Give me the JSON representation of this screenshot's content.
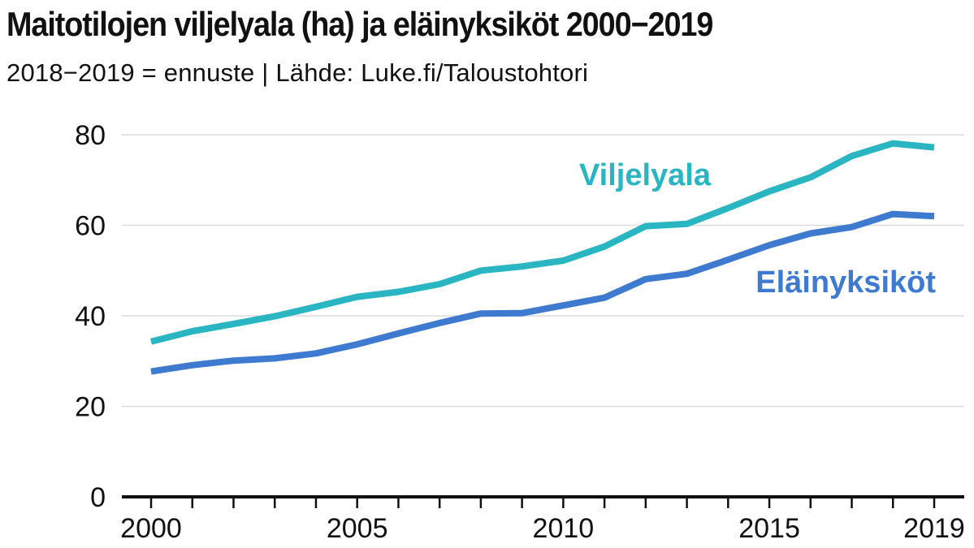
{
  "header": {
    "title": "Maitotilojen viljelyala (ha) ja eläinyksiköt 2000−2019",
    "subtitle": "2018−2019 = ennuste | Lähde: Luke.fi/Taloustohtori"
  },
  "chart_data": {
    "type": "line",
    "title": "Maitotilojen viljelyala (ha) ja eläinyksiköt 2000−2019",
    "subtitle": "2018−2019 = ennuste | Lähde: Luke.fi/Taloustohtori",
    "xlabel": "",
    "ylabel": "",
    "x": [
      2000,
      2001,
      2002,
      2003,
      2004,
      2005,
      2006,
      2007,
      2008,
      2009,
      2010,
      2011,
      2012,
      2013,
      2014,
      2015,
      2016,
      2017,
      2018,
      2019
    ],
    "x_tick_labels": [
      "2000",
      "2005",
      "2010",
      "2015",
      "2019"
    ],
    "y_ticks": [
      0,
      20,
      40,
      60,
      80
    ],
    "y_tick_labels": [
      "0",
      "20",
      "40",
      "60",
      "80"
    ],
    "xlim": [
      2000,
      2019
    ],
    "ylim": [
      0,
      80
    ],
    "grid": true,
    "series": [
      {
        "name": "Viljelyala",
        "color": "#29b6c2",
        "values": [
          34.3,
          36.6,
          38.2,
          39.9,
          42.0,
          44.2,
          45.3,
          47.0,
          50.0,
          50.9,
          52.2,
          55.3,
          59.8,
          60.3,
          63.8,
          67.5,
          70.6,
          75.3,
          78.1,
          77.2
        ]
      },
      {
        "name": "Eläinyksiköt",
        "color": "#3d7ad0",
        "values": [
          27.7,
          29.1,
          30.1,
          30.6,
          31.7,
          33.7,
          36.1,
          38.4,
          40.5,
          40.6,
          42.3,
          44.0,
          48.1,
          49.3,
          52.4,
          55.6,
          58.2,
          59.6,
          62.5,
          62.0
        ]
      }
    ]
  }
}
